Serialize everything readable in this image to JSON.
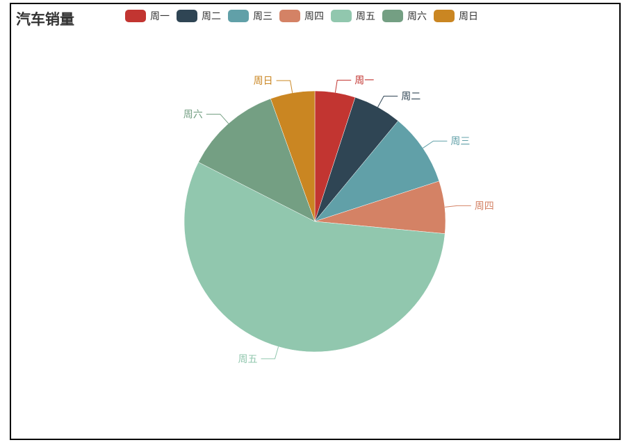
{
  "chart_data": {
    "type": "pie",
    "title": "汽车销量",
    "categories": [
      "周一",
      "周二",
      "周三",
      "周四",
      "周五",
      "周六",
      "周日"
    ],
    "values": [
      5,
      6,
      9,
      6.5,
      56,
      12,
      5.5
    ],
    "colors": [
      "#c23531",
      "#2f4554",
      "#61a0a8",
      "#d48265",
      "#91c7ae",
      "#749f83",
      "#ca8622"
    ],
    "legend_position": "top",
    "start_angle_deg": 90,
    "direction": "clockwise"
  }
}
